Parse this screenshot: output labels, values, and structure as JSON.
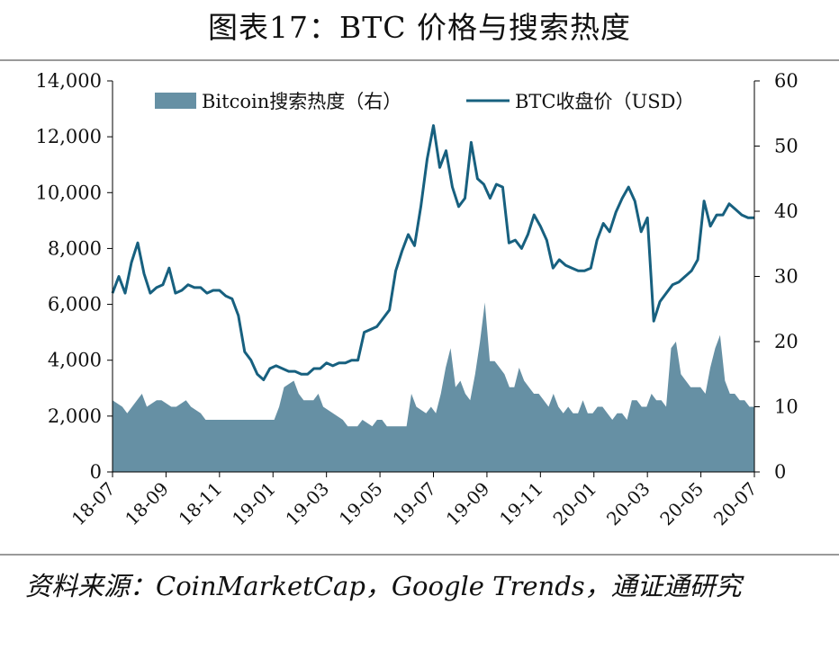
{
  "title": "图表17：BTC 价格与搜索热度",
  "source": "资料来源：CoinMarketCap，Google Trends，通证通研究",
  "chart_data": {
    "type": "line+area",
    "x_ticks": [
      "18-07",
      "18-09",
      "18-11",
      "19-01",
      "19-03",
      "19-05",
      "19-07",
      "19-09",
      "19-11",
      "20-01",
      "20-03",
      "20-05",
      "20-07"
    ],
    "x_range": [
      0,
      104
    ],
    "y_left": {
      "min": 0,
      "max": 14000,
      "ticks": [
        0,
        2000,
        4000,
        6000,
        8000,
        10000,
        12000,
        14000
      ],
      "tick_labels": [
        "0",
        "2,000",
        "4,000",
        "6,000",
        "8,000",
        "10,000",
        "12,000",
        "14,000"
      ]
    },
    "y_right": {
      "min": 0,
      "max": 60,
      "ticks": [
        0,
        10,
        20,
        30,
        40,
        50,
        60
      ],
      "tick_labels": [
        "0",
        "10",
        "20",
        "30",
        "40",
        "50",
        "60"
      ]
    },
    "legend": [
      {
        "label": "Bitcoin搜索热度（右）",
        "kind": "area",
        "color": "#6690a4"
      },
      {
        "label": "BTC收盘价（USD）",
        "kind": "line",
        "color": "#17607f"
      }
    ],
    "series": [
      {
        "name": "Bitcoin搜索热度（右）",
        "axis": "right",
        "type": "area",
        "color": "#6690a4",
        "points": [
          [
            0,
            11
          ],
          [
            2,
            10
          ],
          [
            3,
            9
          ],
          [
            5,
            11
          ],
          [
            6,
            12
          ],
          [
            7,
            10
          ],
          [
            9,
            11
          ],
          [
            10,
            11
          ],
          [
            12,
            10
          ],
          [
            13,
            10
          ],
          [
            15,
            11
          ],
          [
            16,
            10
          ],
          [
            18,
            9
          ],
          [
            19,
            8
          ],
          [
            22,
            8
          ],
          [
            25,
            8
          ],
          [
            27,
            8
          ],
          [
            28,
            8
          ],
          [
            30,
            8
          ],
          [
            31,
            8
          ],
          [
            33,
            8
          ],
          [
            34,
            10
          ],
          [
            35,
            13
          ],
          [
            37,
            14
          ],
          [
            38,
            12
          ],
          [
            39,
            11
          ],
          [
            41,
            11
          ],
          [
            42,
            12
          ],
          [
            43,
            10
          ],
          [
            45,
            9
          ],
          [
            47,
            8
          ],
          [
            48,
            7
          ],
          [
            50,
            7
          ],
          [
            51,
            8
          ],
          [
            53,
            7
          ],
          [
            54,
            8
          ],
          [
            55,
            8
          ],
          [
            56,
            7
          ],
          [
            58,
            7
          ],
          [
            59,
            7
          ],
          [
            60,
            7
          ],
          [
            61,
            12
          ],
          [
            62,
            10
          ],
          [
            64,
            9
          ],
          [
            65,
            10
          ],
          [
            66,
            9
          ],
          [
            67,
            12
          ],
          [
            68,
            16
          ],
          [
            69,
            19
          ],
          [
            70,
            13
          ],
          [
            71,
            14
          ],
          [
            72,
            12
          ],
          [
            73,
            11
          ],
          [
            74,
            15
          ],
          [
            75,
            20
          ],
          [
            76,
            26
          ],
          [
            77,
            17
          ],
          [
            78,
            17
          ],
          [
            79,
            16
          ],
          [
            80,
            15
          ],
          [
            81,
            13
          ],
          [
            82,
            13
          ],
          [
            83,
            16
          ],
          [
            84,
            14
          ],
          [
            85,
            13
          ],
          [
            86,
            12
          ],
          [
            87,
            12
          ],
          [
            88,
            11
          ],
          [
            89,
            10
          ],
          [
            90,
            12
          ],
          [
            91,
            10
          ],
          [
            92,
            9
          ],
          [
            93,
            10
          ],
          [
            94,
            9
          ],
          [
            95,
            9
          ],
          [
            96,
            11
          ],
          [
            97,
            9
          ],
          [
            98,
            9
          ],
          [
            99,
            10
          ],
          [
            100,
            10
          ],
          [
            101,
            9
          ],
          [
            102,
            8
          ],
          [
            103,
            9
          ],
          [
            104,
            9
          ]
        ],
        "points_tail": [
          [
            105,
            8
          ],
          [
            106,
            11
          ],
          [
            107,
            11
          ],
          [
            108,
            10
          ],
          [
            109,
            10
          ],
          [
            110,
            12
          ],
          [
            111,
            11
          ],
          [
            112,
            11
          ],
          [
            113,
            10
          ],
          [
            114,
            19
          ],
          [
            115,
            20
          ],
          [
            116,
            15
          ],
          [
            117,
            14
          ],
          [
            118,
            13
          ],
          [
            119,
            13
          ],
          [
            120,
            13
          ],
          [
            121,
            12
          ],
          [
            122,
            16
          ],
          [
            123,
            19
          ],
          [
            124,
            21
          ],
          [
            125,
            14
          ],
          [
            126,
            12
          ],
          [
            127,
            12
          ],
          [
            128,
            11
          ],
          [
            129,
            11
          ],
          [
            130,
            10
          ],
          [
            131,
            10
          ]
        ]
      },
      {
        "name": "BTC收盘价（USD）",
        "axis": "left",
        "type": "line",
        "color": "#17607f",
        "points": [
          [
            0,
            6400
          ],
          [
            1,
            7000
          ],
          [
            2,
            6400
          ],
          [
            3,
            7500
          ],
          [
            4,
            8200
          ],
          [
            5,
            7100
          ],
          [
            6,
            6400
          ],
          [
            7,
            6600
          ],
          [
            8,
            6700
          ],
          [
            9,
            7300
          ],
          [
            10,
            6400
          ],
          [
            11,
            6500
          ],
          [
            12,
            6700
          ],
          [
            13,
            6600
          ],
          [
            14,
            6600
          ],
          [
            15,
            6400
          ],
          [
            16,
            6500
          ],
          [
            17,
            6500
          ],
          [
            18,
            6300
          ],
          [
            19,
            6200
          ],
          [
            20,
            5600
          ],
          [
            21,
            4300
          ],
          [
            22,
            4000
          ],
          [
            23,
            3500
          ],
          [
            24,
            3300
          ],
          [
            25,
            3700
          ],
          [
            26,
            3800
          ],
          [
            27,
            3700
          ],
          [
            28,
            3600
          ],
          [
            29,
            3600
          ],
          [
            30,
            3500
          ],
          [
            31,
            3500
          ],
          [
            32,
            3700
          ],
          [
            33,
            3700
          ],
          [
            34,
            3900
          ],
          [
            35,
            3800
          ],
          [
            36,
            3900
          ],
          [
            37,
            3900
          ],
          [
            38,
            4000
          ],
          [
            39,
            4000
          ],
          [
            40,
            5000
          ],
          [
            41,
            5100
          ],
          [
            42,
            5200
          ],
          [
            43,
            5500
          ],
          [
            44,
            5800
          ],
          [
            45,
            7200
          ],
          [
            46,
            7900
          ],
          [
            47,
            8500
          ],
          [
            48,
            8100
          ],
          [
            49,
            9500
          ],
          [
            50,
            11200
          ],
          [
            51,
            12400
          ],
          [
            52,
            10900
          ],
          [
            53,
            11500
          ],
          [
            54,
            10200
          ],
          [
            55,
            9500
          ],
          [
            56,
            9800
          ],
          [
            57,
            11800
          ],
          [
            58,
            10500
          ],
          [
            59,
            10300
          ],
          [
            60,
            9800
          ],
          [
            61,
            10300
          ],
          [
            62,
            10200
          ],
          [
            63,
            8200
          ],
          [
            64,
            8300
          ],
          [
            65,
            8000
          ],
          [
            66,
            8500
          ],
          [
            67,
            9200
          ],
          [
            68,
            8800
          ],
          [
            69,
            8300
          ],
          [
            70,
            7300
          ],
          [
            71,
            7600
          ],
          [
            72,
            7400
          ],
          [
            73,
            7300
          ],
          [
            74,
            7200
          ],
          [
            75,
            7200
          ],
          [
            76,
            7300
          ],
          [
            77,
            8300
          ],
          [
            78,
            8900
          ],
          [
            79,
            8600
          ],
          [
            80,
            9300
          ],
          [
            81,
            9800
          ],
          [
            82,
            10200
          ],
          [
            83,
            9700
          ],
          [
            84,
            8600
          ],
          [
            85,
            9100
          ]
        ],
        "points_tail": [
          [
            86,
            5400
          ],
          [
            87,
            6100
          ],
          [
            88,
            6400
          ],
          [
            89,
            6700
          ],
          [
            90,
            6800
          ],
          [
            91,
            7000
          ],
          [
            92,
            7200
          ],
          [
            93,
            7600
          ],
          [
            94,
            9700
          ],
          [
            95,
            8800
          ],
          [
            96,
            9200
          ],
          [
            97,
            9200
          ],
          [
            98,
            9600
          ],
          [
            99,
            9400
          ],
          [
            100,
            9200
          ],
          [
            101,
            9100
          ],
          [
            102,
            9100
          ]
        ]
      }
    ]
  }
}
